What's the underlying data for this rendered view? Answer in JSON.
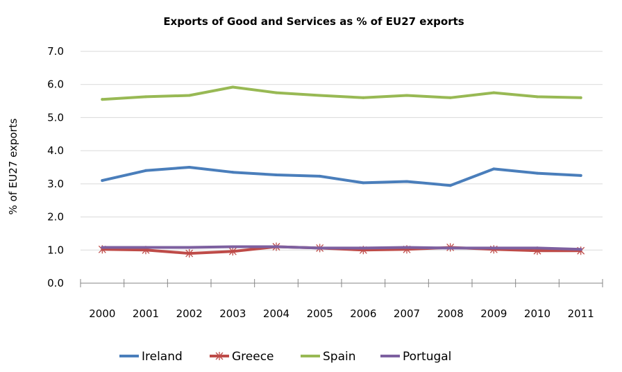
{
  "chart_data": {
    "type": "line",
    "title": "Exports of Good and Services as % of EU27 exports",
    "xlabel": "",
    "ylabel": "% of EU27 exports",
    "categories": [
      "2000",
      "2001",
      "2002",
      "2003",
      "2004",
      "2005",
      "2006",
      "2007",
      "2008",
      "2009",
      "2010",
      "2011"
    ],
    "ylim": [
      0,
      7
    ],
    "yticks": [
      "0.0",
      "1.0",
      "2.0",
      "3.0",
      "4.0",
      "5.0",
      "6.0",
      "7.0"
    ],
    "grid": true,
    "legend_position": "bottom",
    "series": [
      {
        "name": "Ireland",
        "color": "#4a7ebb",
        "marker": "none",
        "values": [
          3.1,
          3.4,
          3.5,
          3.35,
          3.27,
          3.23,
          3.03,
          3.07,
          2.95,
          3.45,
          3.32,
          3.25
        ]
      },
      {
        "name": "Greece",
        "color": "#be4b48",
        "marker": "star",
        "values": [
          1.02,
          1.0,
          0.9,
          0.96,
          1.1,
          1.06,
          1.0,
          1.02,
          1.08,
          1.02,
          0.98,
          0.98
        ]
      },
      {
        "name": "Spain",
        "color": "#98b954",
        "marker": "none",
        "values": [
          5.55,
          5.63,
          5.67,
          5.92,
          5.75,
          5.67,
          5.6,
          5.67,
          5.6,
          5.75,
          5.63,
          5.6
        ]
      },
      {
        "name": "Portugal",
        "color": "#7d60a0",
        "marker": "none",
        "values": [
          1.08,
          1.08,
          1.08,
          1.1,
          1.1,
          1.06,
          1.06,
          1.08,
          1.06,
          1.06,
          1.06,
          1.02
        ]
      }
    ]
  }
}
